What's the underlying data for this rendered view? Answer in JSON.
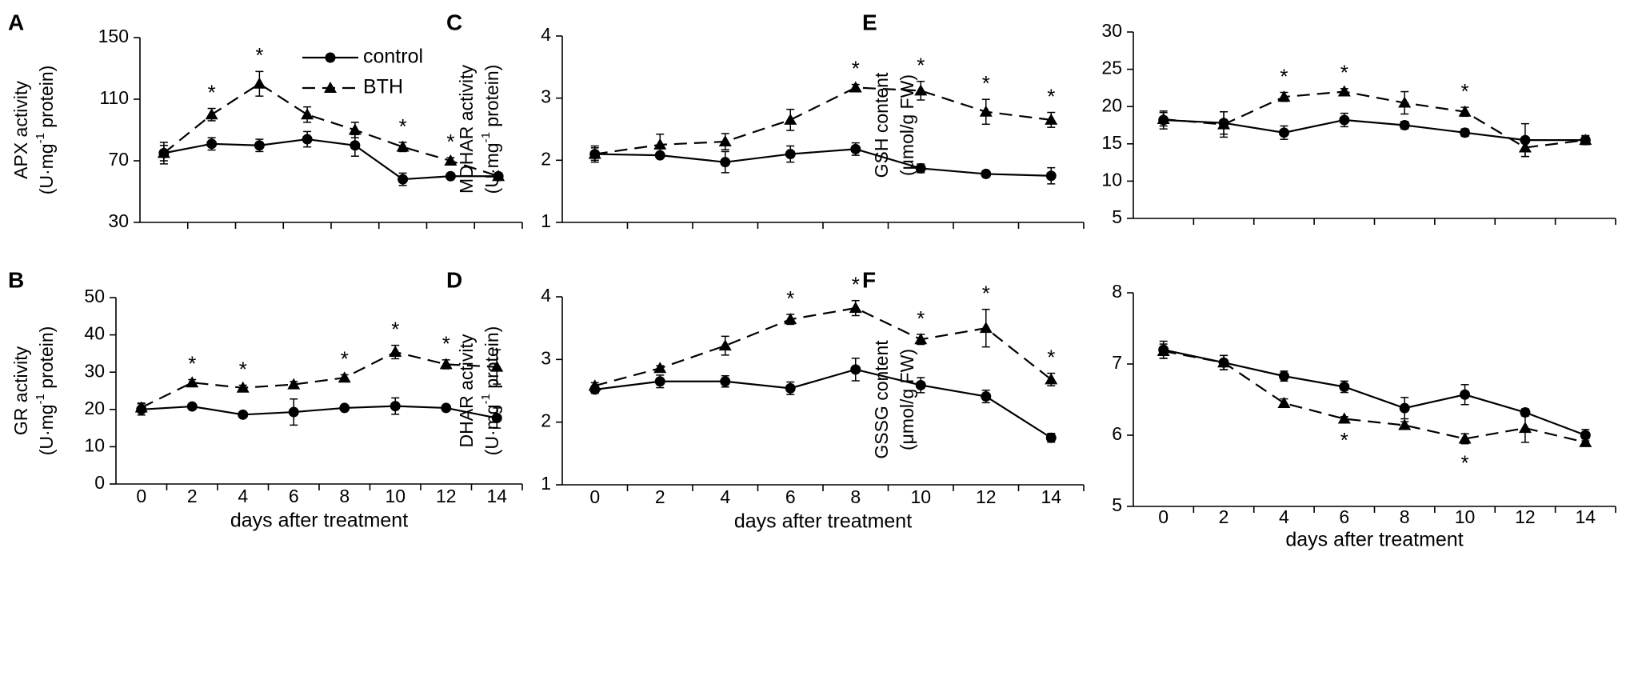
{
  "chart_data": [
    {
      "type": "line",
      "panel": "A",
      "ylabel": "APX activity",
      "yunit_base": "(U·mg",
      "yunit_sup": "-1",
      "yunit_tail": " protein)",
      "xlabel": "",
      "x": [
        0,
        2,
        4,
        6,
        8,
        10,
        12,
        14
      ],
      "x_ticks_shown": false,
      "ylim": [
        30,
        150
      ],
      "yticks": [
        30,
        70,
        110,
        150
      ],
      "legend": {
        "position": "top-right",
        "entries": [
          "control",
          "BTH"
        ]
      },
      "series": [
        {
          "name": "control",
          "marker": "circle",
          "line": "solid",
          "values": [
            75,
            81,
            80,
            84,
            80,
            58,
            60,
            60
          ],
          "errors": [
            5,
            4,
            4,
            5,
            7,
            4,
            1,
            2
          ]
        },
        {
          "name": "BTH",
          "marker": "triangle",
          "line": "dashed",
          "values": [
            75,
            100,
            120,
            100,
            90,
            79,
            70,
            60
          ],
          "errors": [
            7,
            4,
            8,
            5,
            5,
            3,
            2,
            2
          ]
        }
      ],
      "significant_x": [
        2,
        4,
        10,
        12
      ],
      "star_series": "BTH",
      "star_side": "above"
    },
    {
      "type": "line",
      "panel": "B",
      "ylabel": "GR activity",
      "yunit_base": "(U·mg",
      "yunit_sup": "-1",
      "yunit_tail": " protein)",
      "xlabel": "days after treatment",
      "x": [
        0,
        2,
        4,
        6,
        8,
        10,
        12,
        14
      ],
      "x_ticks_shown": true,
      "ylim": [
        0,
        50
      ],
      "yticks": [
        0,
        10,
        20,
        30,
        40,
        50
      ],
      "series": [
        {
          "name": "control",
          "marker": "circle",
          "line": "solid",
          "values": [
            20,
            20.8,
            18.6,
            19.3,
            20.4,
            20.9,
            20.4,
            17.7
          ],
          "errors": [
            1.5,
            0.6,
            0.6,
            3.5,
            0.5,
            2.2,
            0.5,
            2.7
          ]
        },
        {
          "name": "BTH",
          "marker": "triangle",
          "line": "dashed",
          "values": [
            20.5,
            27.2,
            25.8,
            26.7,
            28.5,
            35.4,
            32.1,
            31.4
          ],
          "errors": [
            1.2,
            0.8,
            0.7,
            0.8,
            0.8,
            1.8,
            1.2,
            4.6
          ]
        }
      ],
      "significant_x": [
        2,
        4,
        8,
        10,
        12
      ],
      "star_series": "BTH",
      "star_side": "above"
    },
    {
      "type": "line",
      "panel": "C",
      "ylabel": "MDHAR activity",
      "yunit_base": "(U·mg",
      "yunit_sup": "-1",
      "yunit_tail": " protein)",
      "xlabel": "",
      "x": [
        0,
        2,
        4,
        6,
        8,
        10,
        12,
        14
      ],
      "x_ticks_shown": false,
      "ylim": [
        1,
        4
      ],
      "yticks": [
        1,
        2,
        3,
        4
      ],
      "series": [
        {
          "name": "control",
          "marker": "circle",
          "line": "solid",
          "values": [
            2.1,
            2.08,
            1.97,
            2.1,
            2.18,
            1.87,
            1.78,
            1.75
          ],
          "errors": [
            0.1,
            0.03,
            0.17,
            0.13,
            0.1,
            0.07,
            0.05,
            0.13
          ]
        },
        {
          "name": "BTH",
          "marker": "triangle",
          "line": "dashed",
          "values": [
            2.1,
            2.25,
            2.3,
            2.65,
            3.17,
            3.12,
            2.78,
            2.65
          ],
          "errors": [
            0.13,
            0.17,
            0.13,
            0.17,
            0.05,
            0.15,
            0.2,
            0.12
          ]
        }
      ],
      "significant_x": [
        8,
        10,
        12,
        14
      ],
      "star_series": "BTH",
      "star_side": "above"
    },
    {
      "type": "line",
      "panel": "D",
      "ylabel": "DHAR activity",
      "yunit_base": "(U·mg",
      "yunit_sup": "-1",
      "yunit_tail": " protein)",
      "xlabel": "days after treatment",
      "x": [
        0,
        2,
        4,
        6,
        8,
        10,
        12,
        14
      ],
      "x_ticks_shown": true,
      "ylim": [
        1,
        4
      ],
      "yticks": [
        1,
        2,
        3,
        4
      ],
      "series": [
        {
          "name": "control",
          "marker": "circle",
          "line": "solid",
          "values": [
            2.52,
            2.65,
            2.65,
            2.54,
            2.84,
            2.59,
            2.41,
            1.75
          ],
          "errors": [
            0.06,
            0.1,
            0.09,
            0.1,
            0.18,
            0.12,
            0.1,
            0.07
          ]
        },
        {
          "name": "BTH",
          "marker": "triangle",
          "line": "dashed",
          "values": [
            2.58,
            2.86,
            3.22,
            3.64,
            3.82,
            3.32,
            3.5,
            2.68
          ],
          "errors": [
            0.05,
            0.04,
            0.15,
            0.08,
            0.12,
            0.08,
            0.3,
            0.1
          ]
        }
      ],
      "significant_x": [
        6,
        8,
        10,
        12,
        14
      ],
      "star_series": "BTH",
      "star_side": "above"
    },
    {
      "type": "line",
      "panel": "E",
      "ylabel": "GSH content",
      "yunit_base": "(μmol/g FW)",
      "yunit_sup": "",
      "yunit_tail": "",
      "xlabel": "",
      "x": [
        0,
        2,
        4,
        6,
        8,
        10,
        12,
        14
      ],
      "x_ticks_shown": false,
      "ylim": [
        5,
        30
      ],
      "yticks": [
        5,
        10,
        15,
        20,
        25,
        30
      ],
      "series": [
        {
          "name": "control",
          "marker": "circle",
          "line": "solid",
          "values": [
            18.2,
            17.8,
            16.5,
            18.2,
            17.5,
            16.5,
            15.5,
            15.5
          ],
          "errors": [
            1.2,
            1.5,
            0.9,
            0.9,
            0.5,
            0.5,
            2.2,
            0.6
          ]
        },
        {
          "name": "BTH",
          "marker": "triangle",
          "line": "dashed",
          "values": [
            18.3,
            17.6,
            21.3,
            22,
            20.5,
            19.3,
            14.5,
            15.5
          ],
          "errors": [
            0.9,
            1.7,
            0.6,
            0.4,
            1.5,
            0.6,
            1.2,
            0.6
          ]
        }
      ],
      "significant_x": [
        4,
        6,
        10
      ],
      "star_series": "BTH",
      "star_side": "above"
    },
    {
      "type": "line",
      "panel": "F",
      "ylabel": "GSSG content",
      "yunit_base": "(μmol/g FW)",
      "yunit_sup": "",
      "yunit_tail": "",
      "xlabel": "days after treatment",
      "x": [
        0,
        2,
        4,
        6,
        8,
        10,
        12,
        14
      ],
      "x_ticks_shown": true,
      "ylim": [
        5,
        8
      ],
      "yticks": [
        5,
        6,
        7,
        8
      ],
      "series": [
        {
          "name": "control",
          "marker": "circle",
          "line": "solid",
          "values": [
            7.2,
            7.02,
            6.83,
            6.68,
            6.38,
            6.57,
            6.32,
            6
          ],
          "errors": [
            0.12,
            0.1,
            0.07,
            0.08,
            0.15,
            0.14,
            0.05,
            0.08
          ]
        },
        {
          "name": "BTH",
          "marker": "triangle",
          "line": "dashed",
          "values": [
            7.18,
            7.02,
            6.45,
            6.23,
            6.14,
            5.95,
            6.1,
            5.9
          ],
          "errors": [
            0.1,
            0.1,
            0.06,
            0.03,
            0.05,
            0.07,
            0.2,
            0.05
          ]
        }
      ],
      "significant_x": [
        6,
        10
      ],
      "star_series": "BTH",
      "star_side": "below"
    }
  ]
}
